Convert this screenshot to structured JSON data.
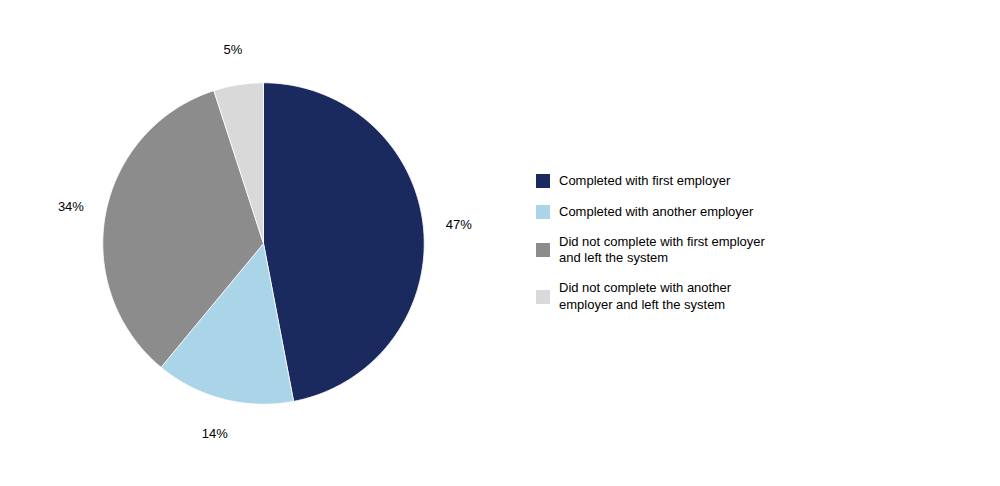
{
  "chart_data": {
    "type": "pie",
    "categories": [
      "Completed with first employer",
      "Completed with another employer",
      "Did not complete with first employer\nand left the system",
      "Did not complete with another\nemployer and left the system"
    ],
    "values": [
      47,
      14,
      34,
      5
    ],
    "value_labels": [
      "47%",
      "14%",
      "34%",
      "5%"
    ],
    "colors": [
      "#1a2a5e",
      "#aad4e8",
      "#8c8c8c",
      "#d9d9d9"
    ],
    "data_labels": true,
    "legend": "right"
  }
}
